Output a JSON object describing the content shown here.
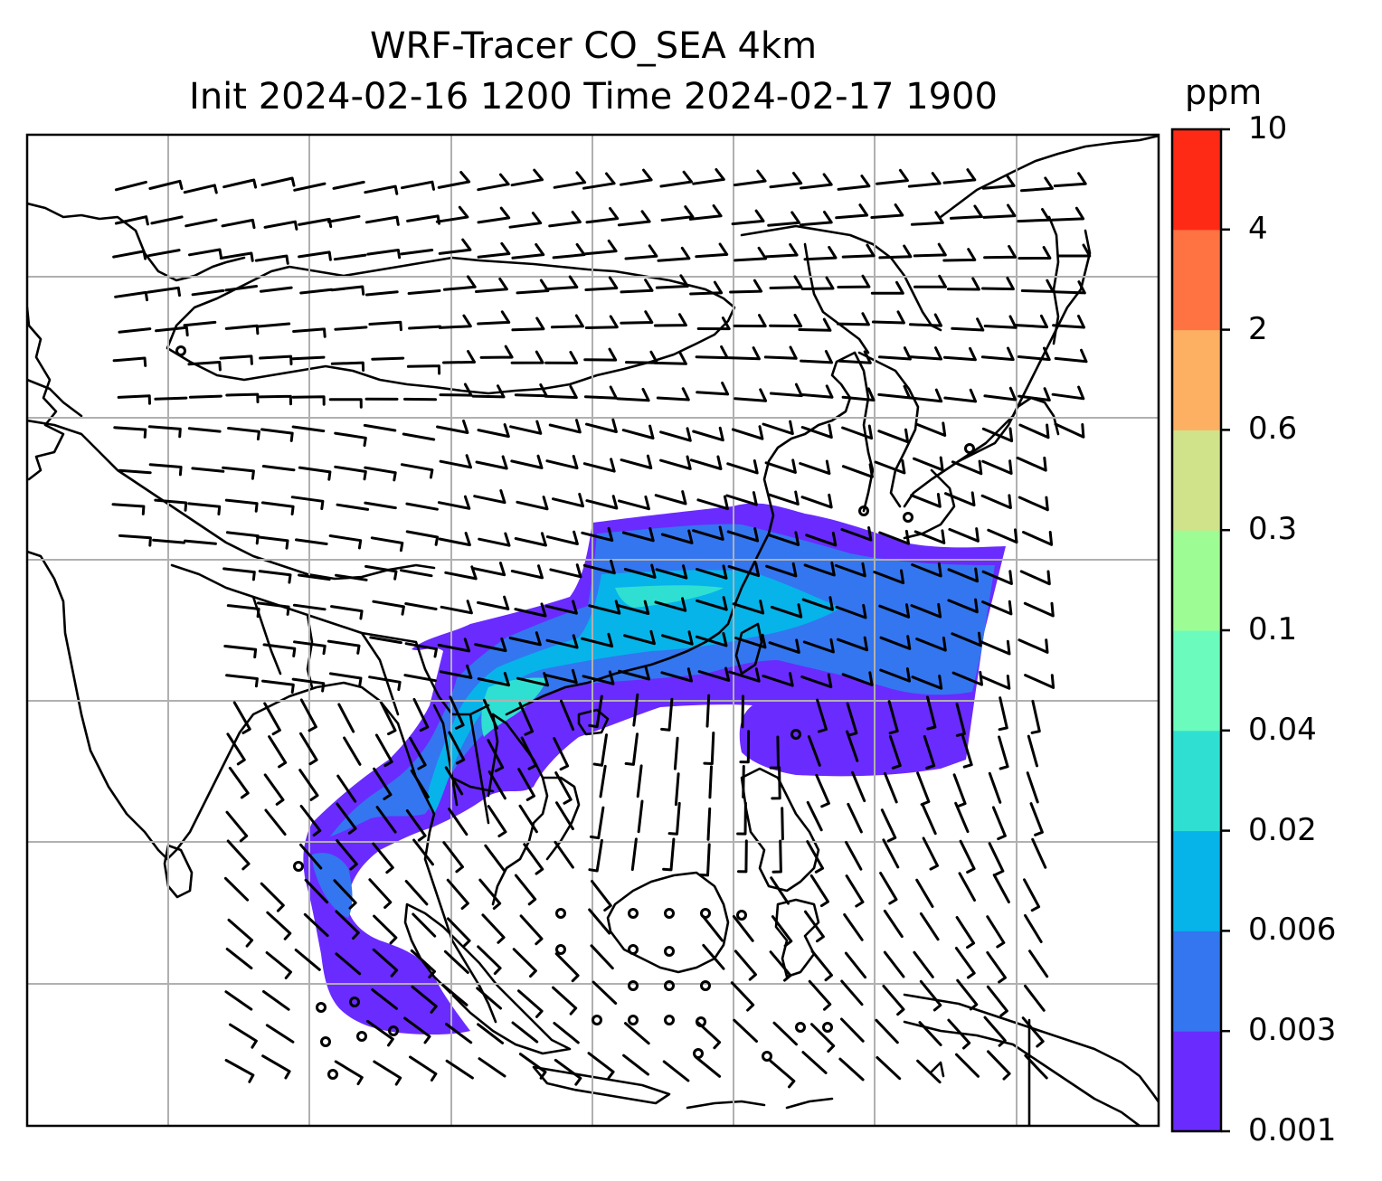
{
  "title_line1": "WRF-Tracer CO_SEA 4km",
  "title_line2": "Init 2024-02-16 1200 Time 2024-02-17 1900",
  "colorbar": {
    "unit": "ppm",
    "levels": [
      "0.001",
      "0.003",
      "0.006",
      "0.02",
      "0.04",
      "0.1",
      "0.3",
      "0.6",
      "2",
      "4",
      "10"
    ],
    "colors": [
      "#6a2bff",
      "#3376f0",
      "#06b4ea",
      "#2fe0d2",
      "#6bfbbd",
      "#9efc94",
      "#d0e28a",
      "#fdaf62",
      "#ff7343",
      "#ff2a16"
    ]
  },
  "map": {
    "layers": [
      "coastlines",
      "country-borders",
      "gridlines",
      "wind-barbs",
      "co-tracer-shading"
    ],
    "plume_levels_visible": [
      "0.001",
      "0.003",
      "0.006",
      "0.02",
      "0.04"
    ]
  }
}
